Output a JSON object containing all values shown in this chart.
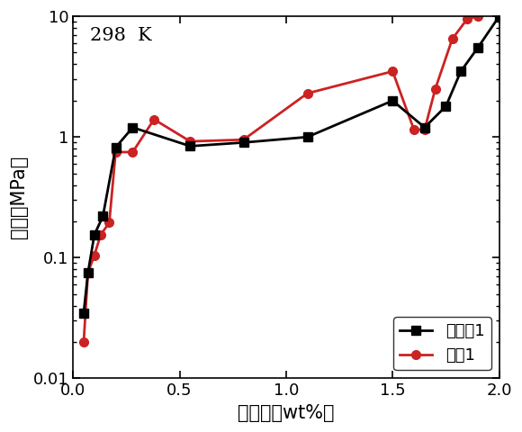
{
  "series1_label": "实施例1",
  "series2_label": "对比1",
  "series1_color": "#000000",
  "series2_color": "#cc2222",
  "series1_marker": "s",
  "series2_marker": "o",
  "series1_x": [
    0.05,
    0.07,
    0.1,
    0.14,
    0.2,
    0.28,
    0.55,
    0.8,
    1.1,
    1.5,
    1.65,
    1.75,
    1.82,
    1.9,
    2.0
  ],
  "series1_y": [
    0.035,
    0.075,
    0.155,
    0.22,
    0.82,
    1.2,
    0.84,
    0.9,
    1.0,
    2.0,
    1.2,
    1.8,
    3.5,
    5.5,
    10.0
  ],
  "series2_x": [
    0.05,
    0.07,
    0.1,
    0.13,
    0.17,
    0.2,
    0.28,
    0.38,
    0.55,
    0.8,
    1.1,
    1.5,
    1.6,
    1.65,
    1.7,
    1.78,
    1.85,
    1.9
  ],
  "series2_y": [
    0.02,
    0.075,
    0.105,
    0.155,
    0.195,
    0.75,
    0.75,
    1.4,
    0.92,
    0.95,
    2.3,
    3.5,
    1.15,
    1.15,
    2.5,
    6.5,
    9.5,
    10.0
  ],
  "xlabel": "氢含量（wt%）",
  "ylabel": "压力（MPa）",
  "annotation": "298  K",
  "xlim": [
    0.0,
    2.0
  ],
  "ylim_log": [
    0.01,
    10
  ],
  "xticks": [
    0.0,
    0.5,
    1.0,
    1.5,
    2.0
  ],
  "yticks_log": [
    0.01,
    0.1,
    1,
    10
  ],
  "linewidth": 2.0,
  "markersize": 7,
  "legend_loc": "lower right",
  "font_size_label": 15,
  "font_size_tick": 13,
  "font_size_annotation": 15,
  "font_size_legend": 13,
  "background_color": "#ffffff",
  "fig_width": 5.8,
  "fig_height": 4.8
}
